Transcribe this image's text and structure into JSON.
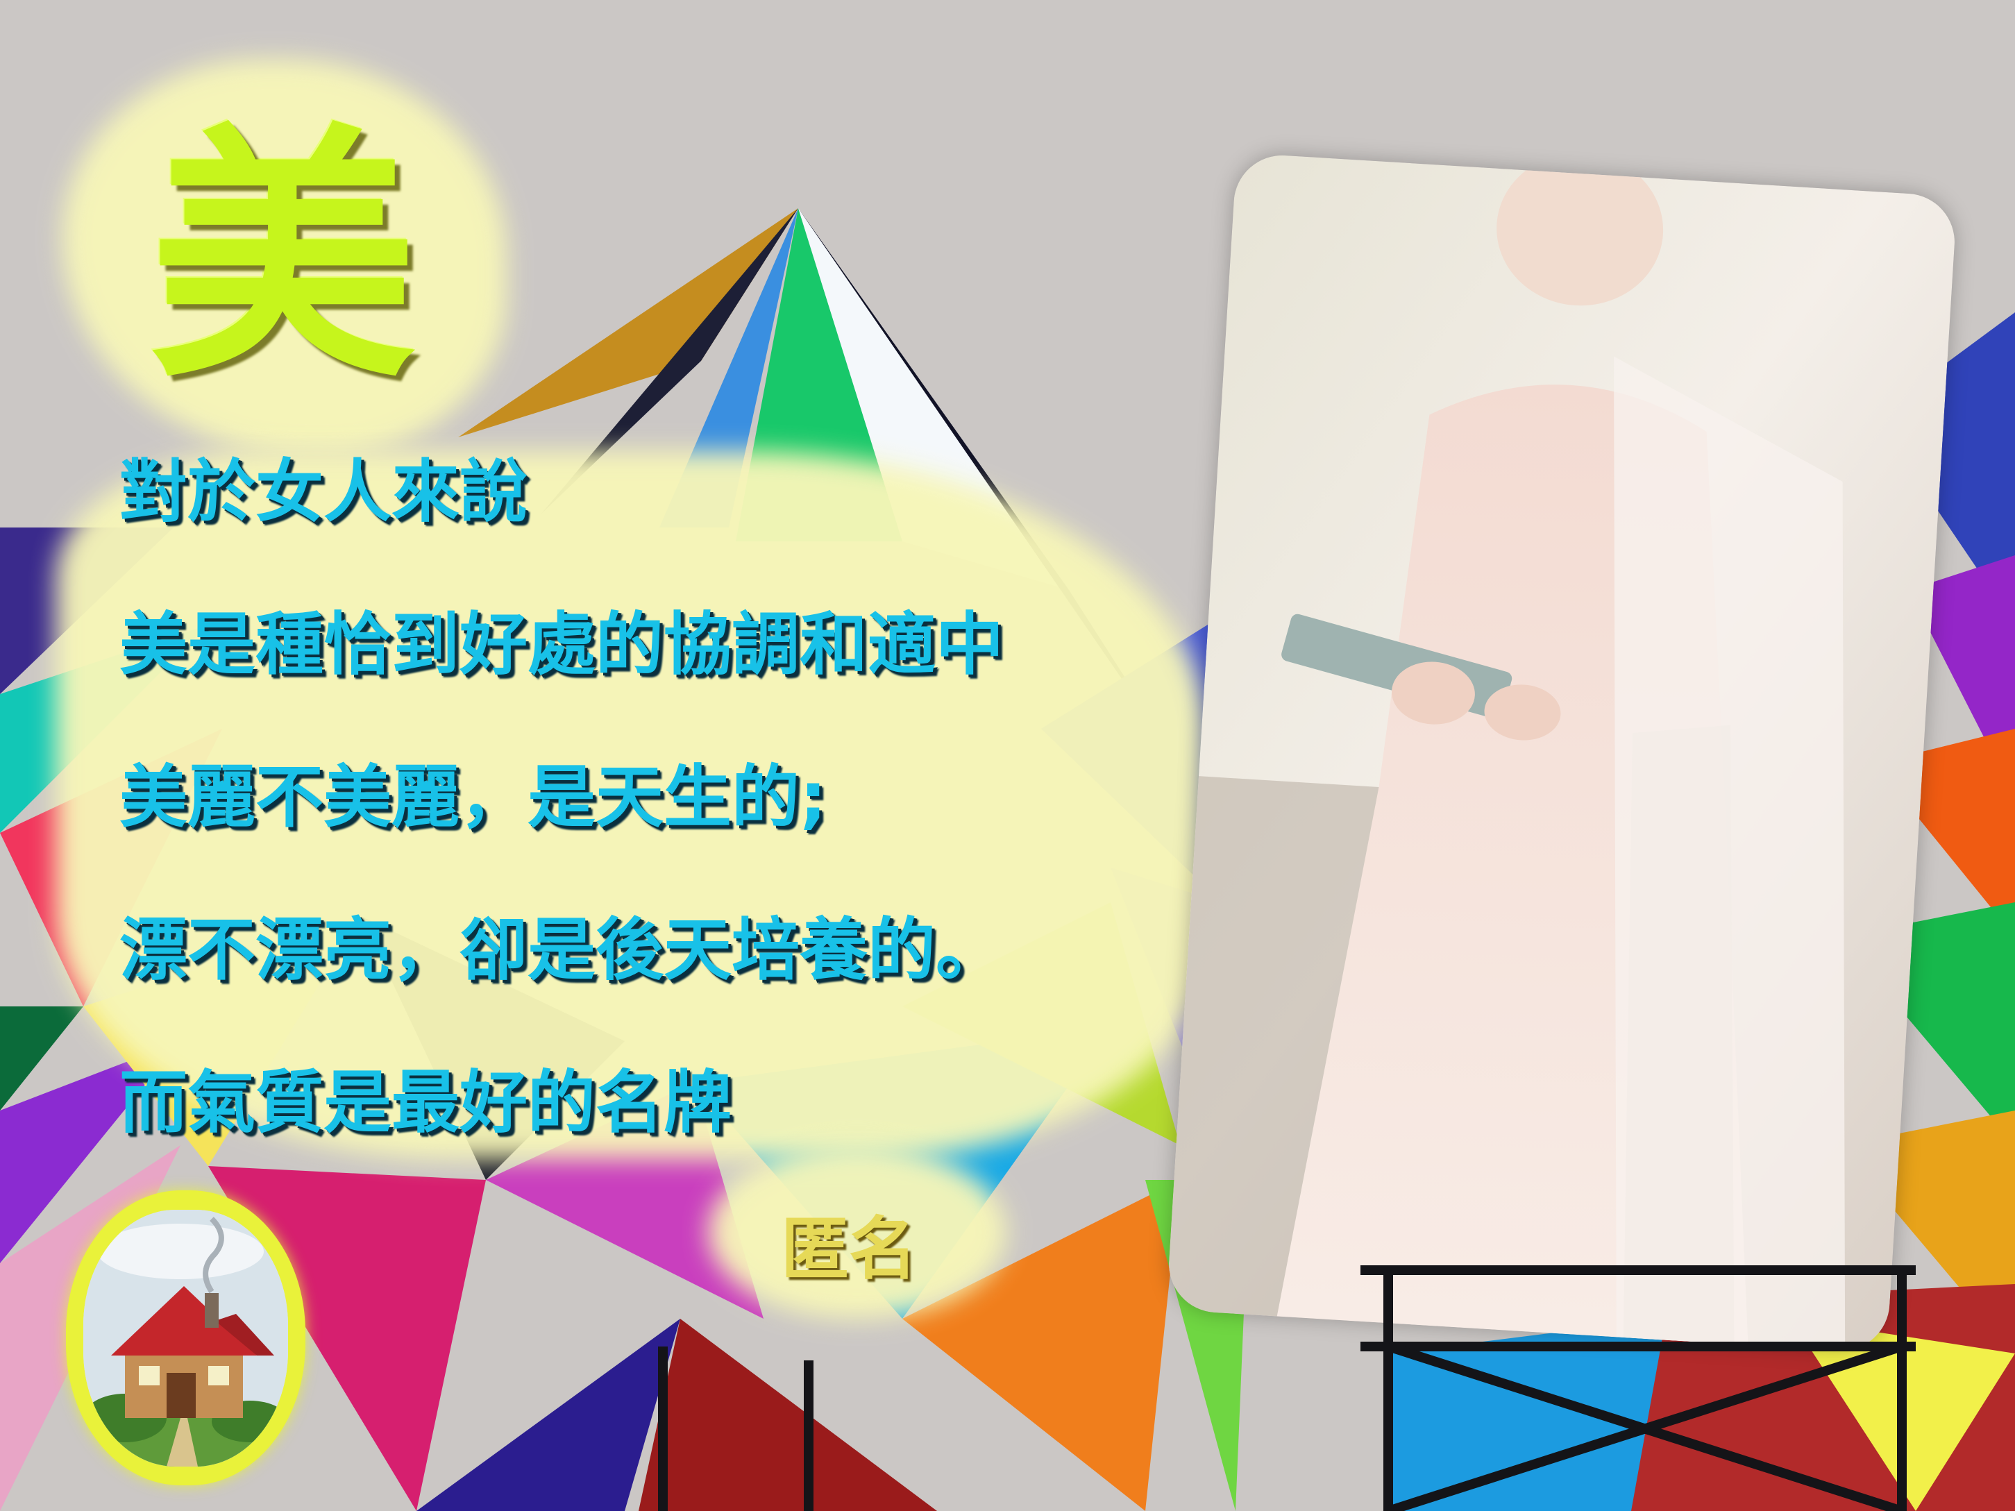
{
  "title_char": "美",
  "quote_lines": [
    "對於女人來說",
    "美是種恰到好處的協調和適中",
    "美麗不美麗，是天生的;",
    "漂不漂亮，卻是後天培養的。",
    "而氣質是最好的名牌"
  ],
  "author": "匿名",
  "colors": {
    "title_fill": "#c6f51c",
    "quote_text": "#18c1e8",
    "author_text": "#e6d957",
    "highlight": "#f7f6b8",
    "house_frame": "#e9f23a"
  },
  "icons": [
    "house-icon"
  ]
}
